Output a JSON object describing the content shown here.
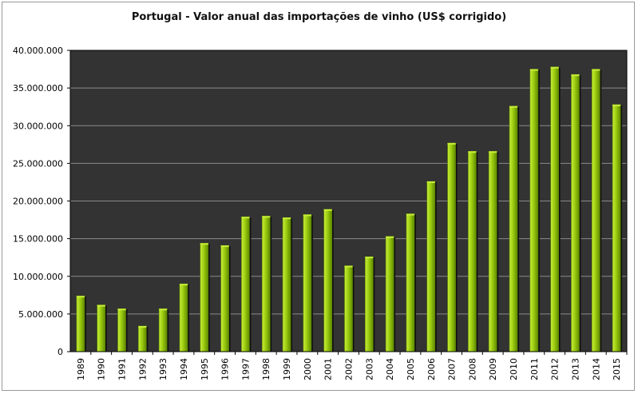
{
  "chart_data": {
    "type": "bar",
    "title": "Portugal - Valor anual das importações de vinho (US$ corrigido)",
    "xlabel": "",
    "ylabel": "",
    "ylim": [
      0,
      40000000
    ],
    "yticks": [
      0,
      5000000,
      10000000,
      15000000,
      20000000,
      25000000,
      30000000,
      35000000,
      40000000
    ],
    "ytick_labels": [
      "0",
      "5.000.000",
      "10.000.000",
      "15.000.000",
      "20.000.000",
      "25.000.000",
      "30.000.000",
      "35.000.000",
      "40.000.000"
    ],
    "categories": [
      "1989",
      "1990",
      "1991",
      "1992",
      "1993",
      "1994",
      "1995",
      "1996",
      "1997",
      "1998",
      "1999",
      "2000",
      "2001",
      "2002",
      "2003",
      "2004",
      "2005",
      "2006",
      "2007",
      "2008",
      "2009",
      "2010",
      "2011",
      "2012",
      "2013",
      "2014",
      "2015"
    ],
    "values": [
      7400000,
      6200000,
      5700000,
      3400000,
      5700000,
      9000000,
      14400000,
      14100000,
      17900000,
      18000000,
      17800000,
      18200000,
      18900000,
      11400000,
      12600000,
      15300000,
      18300000,
      22600000,
      27700000,
      26600000,
      26600000,
      32600000,
      37500000,
      37800000,
      36800000,
      37500000,
      32800000
    ],
    "grid": true,
    "legend": "none",
    "colors": {
      "plot_background": "#333333",
      "gridline": "#8a8a8a",
      "bar_light": "#c8ee3a",
      "bar_mid": "#9ccc10",
      "bar_dark": "#5f8a00",
      "bar_shadow": "#111111"
    }
  }
}
